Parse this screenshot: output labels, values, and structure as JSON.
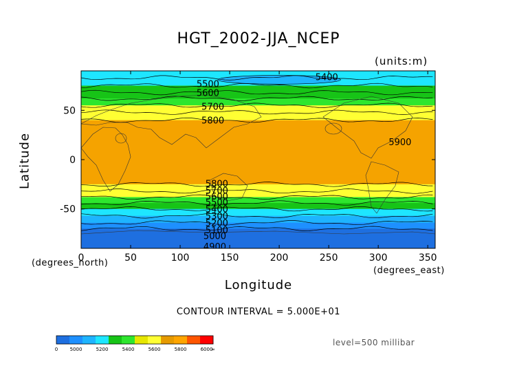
{
  "chart_data": {
    "type": "heatmap",
    "title": "HGT_2002-JJA_NCEP",
    "units_label": "(units:m)",
    "xlabel": "Longitude",
    "ylabel": "Latitude",
    "x_units": "(degrees_east)",
    "y_units": "(degrees_north)",
    "xlim": [
      0,
      357.5
    ],
    "ylim": [
      -90,
      90
    ],
    "x_ticks": [
      0,
      50,
      100,
      150,
      200,
      250,
      300,
      350
    ],
    "y_ticks": [
      -50,
      0,
      50
    ],
    "contour_interval_text": "CONTOUR INTERVAL = 5.000E+01",
    "level_text": "level=500 millibar",
    "zonal_bands": [
      {
        "lat_top": 90,
        "lat_bottom": 83,
        "value": 5450
      },
      {
        "lat_top": 83,
        "lat_bottom": 75,
        "value": 5480
      },
      {
        "lat_top": 75,
        "lat_bottom": 68,
        "value": 5520
      },
      {
        "lat_top": 68,
        "lat_bottom": 62,
        "value": 5580
      },
      {
        "lat_top": 62,
        "lat_bottom": 55,
        "value": 5640
      },
      {
        "lat_top": 55,
        "lat_bottom": 48,
        "value": 5700
      },
      {
        "lat_top": 48,
        "lat_bottom": 40,
        "value": 5760
      },
      {
        "lat_top": 40,
        "lat_bottom": -25,
        "value": 5860
      },
      {
        "lat_top": -25,
        "lat_bottom": -32,
        "value": 5790
      },
      {
        "lat_top": -32,
        "lat_bottom": -38,
        "value": 5720
      },
      {
        "lat_top": -38,
        "lat_bottom": -44,
        "value": 5640
      },
      {
        "lat_top": -44,
        "lat_bottom": -50,
        "value": 5560
      },
      {
        "lat_top": -50,
        "lat_bottom": -57,
        "value": 5440
      },
      {
        "lat_top": -57,
        "lat_bottom": -64,
        "value": 5330
      },
      {
        "lat_top": -64,
        "lat_bottom": -70,
        "value": 5180
      },
      {
        "lat_top": -70,
        "lat_bottom": -90,
        "value": 4950
      }
    ],
    "polar_low": {
      "lon_center": 200,
      "lat_center": 81,
      "lon_radius": 62,
      "lat_radius": 4.5,
      "value": 5380
    },
    "contour_labels": [
      {
        "text": "5400",
        "lon": 248,
        "lat": 84
      },
      {
        "text": "5500",
        "lon": 128,
        "lat": 77
      },
      {
        "text": "5600",
        "lon": 128,
        "lat": 68
      },
      {
        "text": "5700",
        "lon": 133,
        "lat": 54
      },
      {
        "text": "5800",
        "lon": 133,
        "lat": 40
      },
      {
        "text": "5900",
        "lon": 322,
        "lat": 18
      },
      {
        "text": "5800",
        "lon": 137,
        "lat": -24
      },
      {
        "text": "5700",
        "lon": 137,
        "lat": -31
      },
      {
        "text": "5600",
        "lon": 137,
        "lat": -37
      },
      {
        "text": "5500",
        "lon": 137,
        "lat": -43
      },
      {
        "text": "5400",
        "lon": 137,
        "lat": -50
      },
      {
        "text": "5300",
        "lon": 137,
        "lat": -57
      },
      {
        "text": "5200",
        "lon": 137,
        "lat": -64
      },
      {
        "text": "5100",
        "lon": 137,
        "lat": -71
      },
      {
        "text": "5000",
        "lon": 135,
        "lat": -77
      },
      {
        "text": "4900",
        "lon": 135,
        "lat": -88
      }
    ],
    "colorbar": {
      "ticks": [
        "0",
        "5000",
        "5200",
        "5400",
        "5600",
        "5800",
        "6000",
        "∞"
      ],
      "colors": [
        "#1e6fe0",
        "#1e90ff",
        "#1eb4ff",
        "#1ee6ff",
        "#17c417",
        "#2ee62e",
        "#e6e600",
        "#ffff33",
        "#e69a00",
        "#ffa500",
        "#ff5500",
        "#ff0000"
      ]
    },
    "color_scale": [
      {
        "max": 5000,
        "color": "#1e6fe0"
      },
      {
        "max": 5100,
        "color": "#1e90ff"
      },
      {
        "max": 5200,
        "color": "#1e90ff"
      },
      {
        "max": 5300,
        "color": "#1eb4ff"
      },
      {
        "max": 5400,
        "color": "#1eb4ff"
      },
      {
        "max": 5500,
        "color": "#1ee6ff"
      },
      {
        "max": 5600,
        "color": "#17c417"
      },
      {
        "max": 5700,
        "color": "#2ee62e"
      },
      {
        "max": 5800,
        "color": "#ffff33"
      },
      {
        "max": 5900,
        "color": "#f5a300"
      },
      {
        "max": 6000,
        "color": "#f5a300"
      },
      {
        "max": 99999,
        "color": "#ff0000"
      }
    ]
  }
}
